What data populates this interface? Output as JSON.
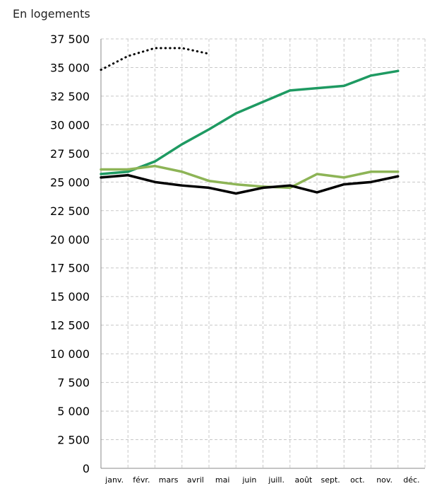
{
  "chart_data": {
    "type": "line",
    "unit_label": "En logements",
    "categories": [
      "janv.",
      "févr.",
      "mars",
      "avril",
      "mai",
      "juin",
      "juill.",
      "août",
      "sept.",
      "oct.",
      "nov.",
      "déc."
    ],
    "ylim": [
      0,
      37500
    ],
    "yticks": [
      0,
      2500,
      5000,
      7500,
      10000,
      12500,
      15000,
      17500,
      20000,
      22500,
      25000,
      27500,
      30000,
      32500,
      35000,
      37500
    ],
    "ytick_labels": [
      "0",
      "2 500",
      "5 000",
      "7 500",
      "10 000",
      "12 500",
      "15 000",
      "17 500",
      "20 000",
      "22 500",
      "25 000",
      "27 500",
      "30 000",
      "32 500",
      "35 000",
      "37 500"
    ],
    "grid": true,
    "series": [
      {
        "color": "#000000",
        "style": "dotted",
        "values": [
          34800,
          36000,
          36700,
          36700,
          36200,
          null,
          null,
          null,
          null,
          null,
          null,
          null
        ]
      },
      {
        "color": "#1e9a62",
        "style": "solid",
        "values": [
          25700,
          25900,
          26800,
          28300,
          29600,
          31000,
          32000,
          33000,
          33200,
          33400,
          34300,
          34700
        ]
      },
      {
        "color": "#8db456",
        "style": "solid",
        "values": [
          26100,
          26100,
          26400,
          25900,
          25100,
          24800,
          24600,
          24500,
          25700,
          25400,
          25900,
          25900
        ]
      },
      {
        "color": "#000000",
        "style": "solid",
        "values": [
          25400,
          25600,
          25000,
          24700,
          24500,
          24000,
          24500,
          24700,
          24100,
          24800,
          25000,
          25500
        ]
      }
    ]
  }
}
